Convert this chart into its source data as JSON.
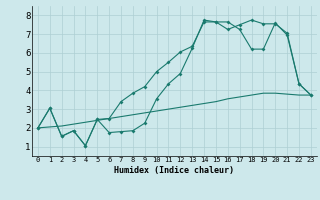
{
  "bg_color": "#cde8eb",
  "grid_color": "#aecfd3",
  "line_color": "#1a7a6e",
  "xlabel": "Humidex (Indice chaleur)",
  "xlim": [
    -0.5,
    23.5
  ],
  "ylim": [
    0.5,
    8.5
  ],
  "yticks": [
    1,
    2,
    3,
    4,
    5,
    6,
    7,
    8
  ],
  "xticks": [
    0,
    1,
    2,
    3,
    4,
    5,
    6,
    7,
    8,
    9,
    10,
    11,
    12,
    13,
    14,
    15,
    16,
    17,
    18,
    19,
    20,
    21,
    22,
    23
  ],
  "line1_x": [
    0,
    1,
    2,
    3,
    4,
    5,
    6,
    7,
    8,
    9,
    10,
    11,
    12,
    13,
    14,
    15,
    16,
    17,
    18,
    19,
    20,
    21,
    22,
    23
  ],
  "line1_y": [
    2.0,
    3.05,
    1.55,
    1.85,
    1.05,
    2.45,
    1.75,
    1.8,
    1.85,
    2.25,
    3.55,
    4.35,
    4.9,
    6.25,
    7.75,
    7.65,
    7.65,
    7.25,
    6.2,
    6.2,
    7.6,
    6.95,
    4.35,
    3.75
  ],
  "line2_x": [
    0,
    1,
    2,
    3,
    4,
    5,
    6,
    7,
    8,
    9,
    10,
    11,
    12,
    13,
    14,
    15,
    16,
    17,
    18,
    19,
    20,
    21,
    22,
    23
  ],
  "line2_y": [
    2.0,
    3.05,
    1.55,
    1.85,
    1.05,
    2.45,
    2.5,
    3.4,
    3.85,
    4.2,
    5.0,
    5.5,
    6.05,
    6.35,
    7.65,
    7.65,
    7.25,
    7.5,
    7.75,
    7.55,
    7.55,
    7.05,
    4.35,
    3.75
  ],
  "line3_x": [
    0,
    1,
    2,
    3,
    4,
    5,
    6,
    7,
    8,
    9,
    10,
    11,
    12,
    13,
    14,
    15,
    16,
    17,
    18,
    19,
    20,
    21,
    22,
    23
  ],
  "line3_y": [
    2.0,
    2.05,
    2.1,
    2.2,
    2.3,
    2.4,
    2.5,
    2.6,
    2.7,
    2.8,
    2.9,
    3.0,
    3.1,
    3.2,
    3.3,
    3.4,
    3.55,
    3.65,
    3.75,
    3.85,
    3.85,
    3.8,
    3.75,
    3.75
  ],
  "xlabel_fontsize": 6.0,
  "ytick_fontsize": 6.5,
  "xtick_fontsize": 5.0
}
